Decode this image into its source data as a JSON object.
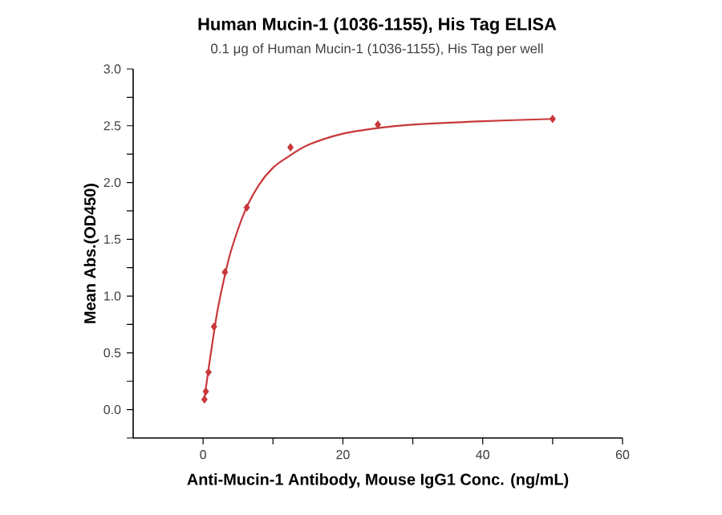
{
  "chart_data": {
    "type": "scatter",
    "title": "Human Mucin-1 (1036-1155), His Tag ELISA",
    "subtitle": "0.1 μg of Human Mucin-1 (1036-1155), His Tag per well",
    "xlabel": "Anti-Mucin-1 Antibody, Mouse IgG1 Conc. (ng/mL)",
    "ylabel": "Mean Abs.(OD450)",
    "series": [
      {
        "color": "#c8373a",
        "marker": "diamond",
        "x": [
          0.195,
          0.39,
          0.78,
          1.56,
          3.125,
          6.25,
          12.5,
          25,
          50
        ],
        "values": [
          0.09,
          0.16,
          0.33,
          0.73,
          1.21,
          1.78,
          2.31,
          2.51,
          2.56
        ]
      },
      {
        "type": "line",
        "color": "#c8373a",
        "marker": "none",
        "x": [
          0.2,
          1,
          2,
          3,
          4,
          6,
          8,
          10,
          12,
          15,
          20,
          25,
          30,
          40,
          50
        ],
        "values": [
          0.1,
          0.45,
          0.85,
          1.15,
          1.4,
          1.75,
          1.98,
          2.13,
          2.22,
          2.33,
          2.43,
          2.48,
          2.51,
          2.54,
          2.56
        ]
      }
    ],
    "xlim": [
      -10,
      60
    ],
    "xticks": [
      0,
      {
        "value": 10,
        "label": null
      },
      20,
      {
        "value": 30,
        "label": null
      },
      40,
      {
        "value": 50,
        "label": null
      },
      60
    ],
    "ylim": [
      -0.25,
      3.0
    ],
    "yticks": [
      {
        "value": -0.25,
        "label": null
      },
      {
        "value": 0,
        "label": "0.0"
      },
      {
        "value": 0.25,
        "label": null
      },
      0.5,
      {
        "value": 0.75,
        "label": null
      },
      {
        "value": 1,
        "label": "1.0"
      },
      {
        "value": 1.25,
        "label": null
      },
      1.5,
      {
        "value": 1.75,
        "label": null
      },
      {
        "value": 2,
        "label": "2.0"
      },
      {
        "value": 2.25,
        "label": null
      },
      2.5,
      {
        "value": 2.75,
        "label": null
      },
      {
        "value": 3,
        "label": "3.0"
      }
    ],
    "grid": false
  }
}
